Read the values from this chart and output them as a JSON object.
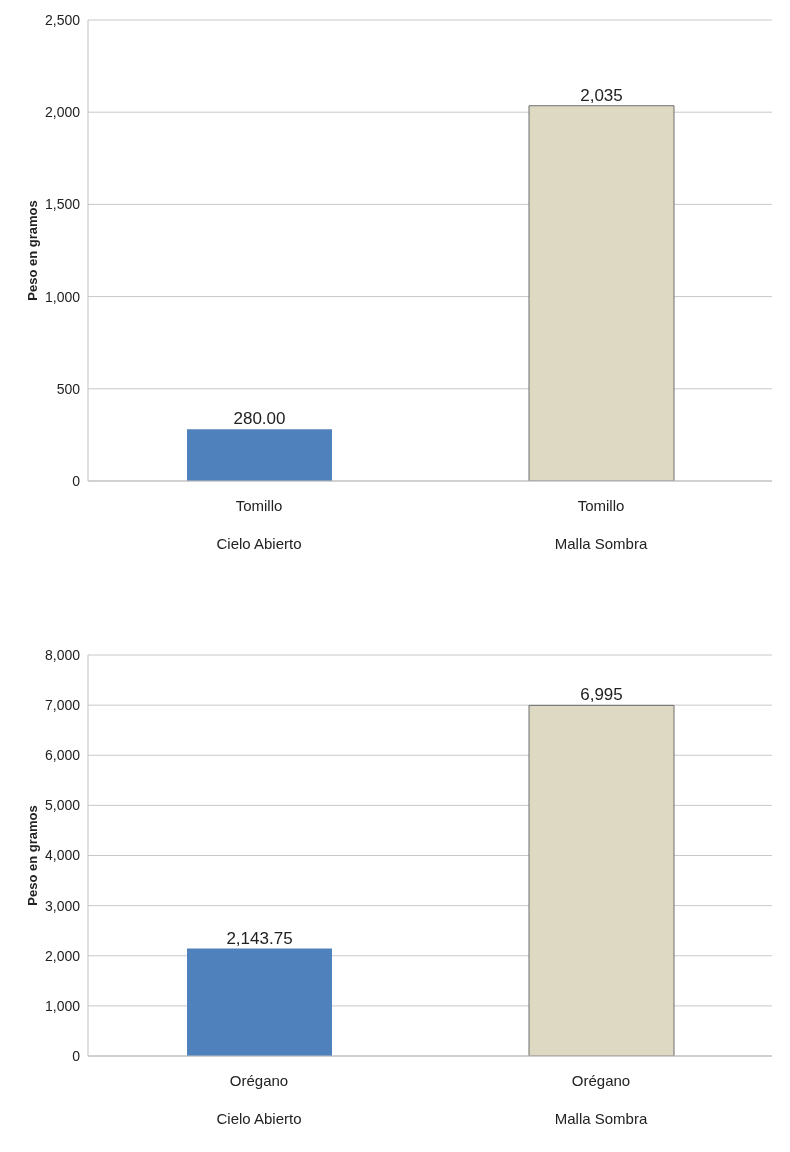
{
  "chart_data": [
    {
      "type": "bar",
      "ylabel": "Peso en gramos",
      "categories": [
        "Tomillo\nCielo Abierto",
        "Tomillo\nMalla Sombra"
      ],
      "values": [
        280,
        2035
      ],
      "colors": [
        "#4f81bd",
        "#ddd9c3"
      ],
      "value_labels": [
        "280.00",
        "2,035"
      ],
      "ylim": [
        0,
        2500
      ],
      "yticks": [
        {
          "value": 0,
          "label": "0"
        },
        {
          "value": 500,
          "label": "500"
        },
        {
          "value": 1000,
          "label": "1,000"
        },
        {
          "value": 1500,
          "label": "1,500"
        },
        {
          "value": 2000,
          "label": "2,000"
        },
        {
          "value": 2500,
          "label": "2,500"
        }
      ],
      "grid": "y",
      "legend": false
    },
    {
      "type": "bar",
      "ylabel": "Peso en gramos",
      "categories": [
        "Orégano\nCielo Abierto",
        "Orégano\nMalla Sombra"
      ],
      "values": [
        2143.75,
        6995
      ],
      "colors": [
        "#4f81bd",
        "#ddd9c3"
      ],
      "value_labels": [
        "2,143.75",
        "6,995"
      ],
      "ylim": [
        0,
        8000
      ],
      "yticks": [
        {
          "value": 0,
          "label": "0"
        },
        {
          "value": 1000,
          "label": "1,000"
        },
        {
          "value": 2000,
          "label": "2,000"
        },
        {
          "value": 3000,
          "label": "3,000"
        },
        {
          "value": 4000,
          "label": "4,000"
        },
        {
          "value": 5000,
          "label": "5,000"
        },
        {
          "value": 6000,
          "label": "6,000"
        },
        {
          "value": 7000,
          "label": "7,000"
        },
        {
          "value": 8000,
          "label": "8,000"
        }
      ],
      "grid": "y",
      "legend": false
    }
  ]
}
